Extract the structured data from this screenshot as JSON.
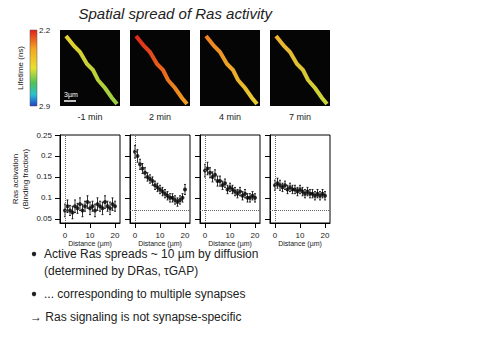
{
  "title": "Spatial spread of Ras activity",
  "colorbar": {
    "label": "Lifetime (ns)",
    "ticks": [
      2.2,
      2.9
    ]
  },
  "scale_bar": "3µm",
  "chart_data": [
    {
      "type": "scatter",
      "title": "-1 min",
      "x_label": "Distance (µm)",
      "y_label": "Ras activation (Binding fraction)",
      "color": "#000000",
      "marker": "circle",
      "x": [
        0,
        1,
        2,
        3,
        4,
        5,
        6,
        7,
        8,
        9,
        10,
        11,
        12,
        13,
        14,
        15,
        16,
        17,
        18,
        19,
        20
      ],
      "values": [
        0.07,
        0.08,
        0.07,
        0.065,
        0.08,
        0.075,
        0.085,
        0.07,
        0.08,
        0.09,
        0.075,
        0.08,
        0.07,
        0.085,
        0.08,
        0.075,
        0.09,
        0.08,
        0.075,
        0.085,
        0.08
      ],
      "errors": [
        0.015,
        0.015,
        0.012,
        0.015,
        0.015,
        0.012,
        0.015,
        0.015,
        0.012,
        0.015,
        0.015,
        0.012,
        0.015,
        0.015,
        0.012,
        0.015,
        0.015,
        0.012,
        0.015,
        0.015,
        0.012
      ],
      "reference_x": 0,
      "xlim": [
        -2,
        22
      ],
      "xticks": [
        0,
        10,
        20
      ],
      "ylim": [
        0.04,
        0.25
      ],
      "yticks": [
        0.05,
        0.1,
        0.15,
        0.2,
        0.25
      ],
      "grid": false
    },
    {
      "type": "scatter",
      "title": "2 min",
      "x_label": "Distance (µm)",
      "color": "#000000",
      "marker": "circle",
      "tick_labels": "x",
      "x": [
        0,
        1,
        2,
        3,
        4,
        5,
        6,
        7,
        8,
        9,
        10,
        11,
        12,
        13,
        14,
        15,
        16,
        17,
        18,
        19,
        20
      ],
      "values": [
        0.21,
        0.2,
        0.18,
        0.17,
        0.16,
        0.15,
        0.145,
        0.14,
        0.13,
        0.125,
        0.12,
        0.115,
        0.11,
        0.105,
        0.1,
        0.1,
        0.095,
        0.09,
        0.095,
        0.1,
        0.12
      ],
      "errors": [
        0.015,
        0.015,
        0.012,
        0.012,
        0.012,
        0.01,
        0.01,
        0.01,
        0.01,
        0.01,
        0.01,
        0.01,
        0.01,
        0.01,
        0.01,
        0.01,
        0.01,
        0.01,
        0.01,
        0.01,
        0.012
      ],
      "reference_x": 0,
      "baseline": 0.075,
      "xlim": [
        -2,
        22
      ],
      "xticks": [
        0,
        10,
        20
      ],
      "ylim": [
        0.04,
        0.25
      ],
      "yticks": [
        0.05,
        0.1,
        0.15,
        0.2,
        0.25
      ],
      "grid": false
    },
    {
      "type": "scatter",
      "title": "4 min",
      "x_label": "Distance (µm)",
      "color": "#000000",
      "marker": "circle",
      "tick_labels": "x",
      "x": [
        0,
        1,
        2,
        3,
        4,
        5,
        6,
        7,
        8,
        9,
        10,
        11,
        12,
        13,
        14,
        15,
        16,
        17,
        18,
        19,
        20
      ],
      "values": [
        0.165,
        0.17,
        0.16,
        0.15,
        0.155,
        0.14,
        0.14,
        0.13,
        0.135,
        0.12,
        0.125,
        0.12,
        0.115,
        0.11,
        0.115,
        0.105,
        0.11,
        0.1,
        0.1,
        0.105,
        0.1
      ],
      "errors": [
        0.015,
        0.015,
        0.012,
        0.012,
        0.012,
        0.012,
        0.012,
        0.01,
        0.01,
        0.01,
        0.01,
        0.01,
        0.01,
        0.01,
        0.01,
        0.01,
        0.01,
        0.01,
        0.01,
        0.01,
        0.01
      ],
      "reference_x": 0,
      "baseline": 0.075,
      "xlim": [
        -2,
        22
      ],
      "xticks": [
        0,
        10,
        20
      ],
      "ylim": [
        0.04,
        0.25
      ],
      "yticks": [
        0.05,
        0.1,
        0.15,
        0.2,
        0.25
      ],
      "grid": false
    },
    {
      "type": "scatter",
      "title": "7 min",
      "x_label": "Distance (µm)",
      "color": "#000000",
      "marker": "circle",
      "tick_labels": "x",
      "x": [
        0,
        1,
        2,
        3,
        4,
        5,
        6,
        7,
        8,
        9,
        10,
        11,
        12,
        13,
        14,
        15,
        16,
        17,
        18,
        19,
        20
      ],
      "values": [
        0.13,
        0.135,
        0.13,
        0.125,
        0.13,
        0.12,
        0.125,
        0.12,
        0.12,
        0.115,
        0.12,
        0.115,
        0.11,
        0.115,
        0.11,
        0.11,
        0.105,
        0.11,
        0.105,
        0.11,
        0.105
      ],
      "errors": [
        0.012,
        0.012,
        0.012,
        0.01,
        0.01,
        0.01,
        0.01,
        0.01,
        0.01,
        0.01,
        0.01,
        0.01,
        0.01,
        0.01,
        0.01,
        0.01,
        0.01,
        0.01,
        0.01,
        0.01,
        0.01
      ],
      "reference_x": 0,
      "baseline": 0.075,
      "xlim": [
        -2,
        22
      ],
      "xticks": [
        0,
        10,
        20
      ],
      "ylim": [
        0.04,
        0.25
      ],
      "yticks": [
        0.05,
        0.1,
        0.15,
        0.2,
        0.25
      ],
      "grid": false
    }
  ],
  "bullets": [
    {
      "lines": [
        "Active Ras spreads ~ 10 µm by diffusion",
        "(determined by DRas, τGAP)"
      ],
      "marker": "dot"
    },
    {
      "lines": [
        "... corresponding to multiple synapses"
      ],
      "marker": "dot"
    },
    {
      "lines": [
        "→ Ras signaling is not synapse-specific"
      ],
      "marker": "none"
    }
  ]
}
